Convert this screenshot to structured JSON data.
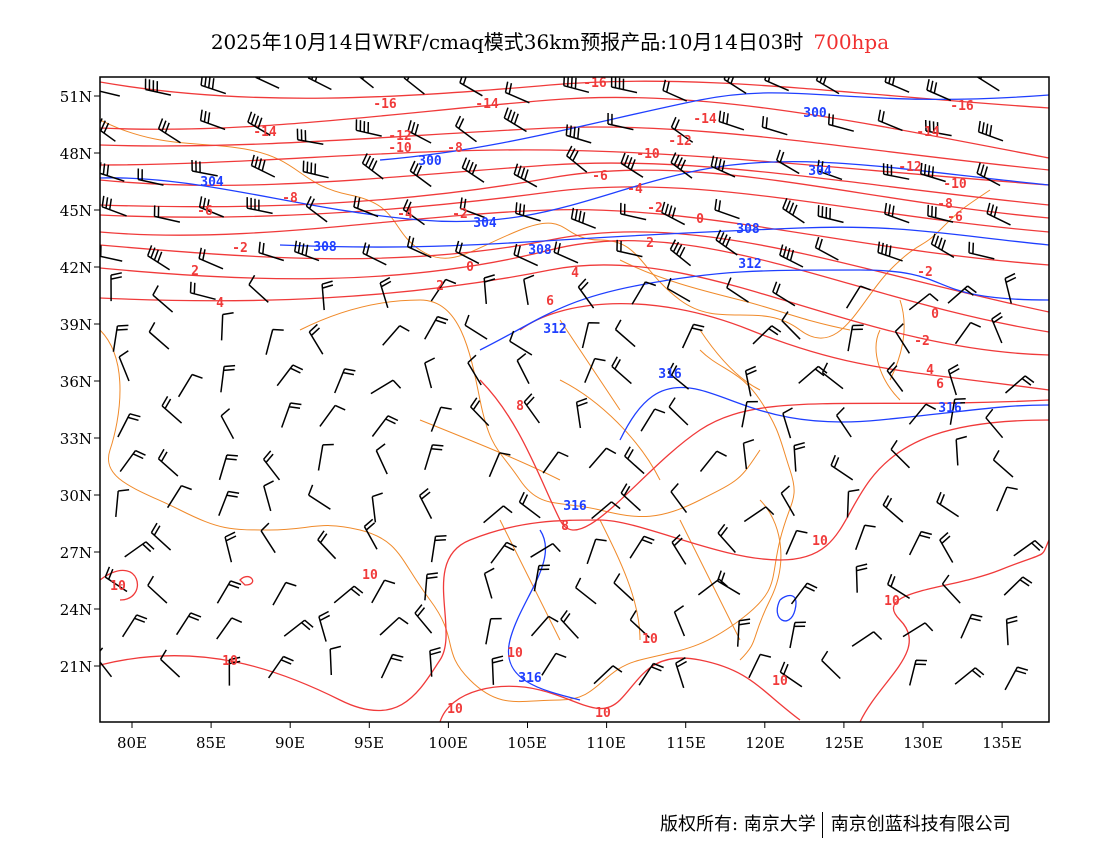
{
  "title": {
    "main": "2025年10月14日WRF/cmaq模式36km预报产品:10月14日03时",
    "level": "700hpa"
  },
  "axes": {
    "lon_labels": [
      "80E",
      "85E",
      "90E",
      "95E",
      "100E",
      "105E",
      "110E",
      "115E",
      "120E",
      "125E",
      "130E",
      "135E"
    ],
    "lat_labels": [
      "51N",
      "48N",
      "45N",
      "42N",
      "39N",
      "36N",
      "33N",
      "30N",
      "27N",
      "24N",
      "21N"
    ]
  },
  "contour_labels": {
    "temperature": [
      "-16",
      "-16",
      "-16",
      "-14",
      "-14",
      "-14",
      "-14",
      "-12",
      "-12",
      "-12",
      "-10",
      "-10",
      "-10",
      "-8",
      "-8",
      "-8",
      "-6",
      "-6",
      "-6",
      "-4",
      "-4",
      "-2",
      "-2",
      "-2",
      "-2",
      "-2",
      "0",
      "0",
      "0",
      "2",
      "2",
      "2",
      "4",
      "4",
      "4",
      "6",
      "6",
      "8",
      "8",
      "10",
      "10",
      "10",
      "10",
      "10",
      "10",
      "10",
      "10",
      "10",
      "10"
    ],
    "height": [
      "300",
      "300",
      "304",
      "304",
      "304",
      "308",
      "308",
      "308",
      "312",
      "312",
      "316",
      "316",
      "316",
      "316"
    ]
  },
  "colors": {
    "temperature": "#f03a3a",
    "height": "#1f3fff",
    "border": "#f08a2a",
    "wind": "#000000"
  },
  "footer": {
    "copyright": "版权所有: 南京大学",
    "company": "南京创蓝科技有限公司"
  }
}
